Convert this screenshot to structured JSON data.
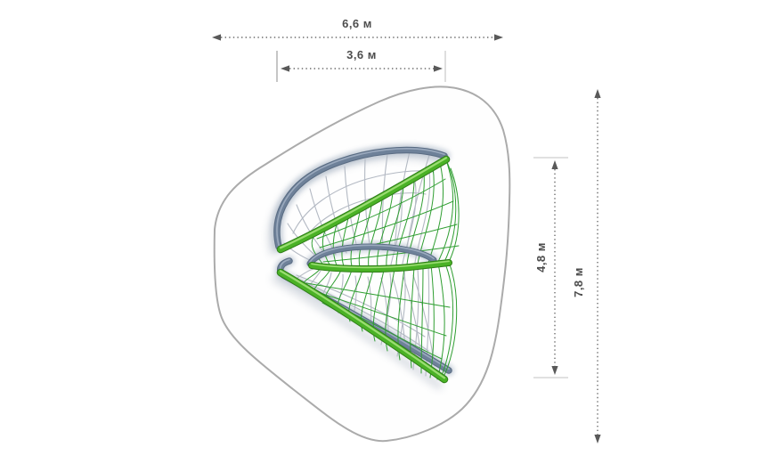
{
  "dimensions": {
    "overall_width": {
      "label": "6,6 м"
    },
    "inner_width": {
      "label": "3,6 м"
    },
    "inner_height": {
      "label": "4,8 м"
    },
    "overall_height": {
      "label": "7,8 м"
    }
  },
  "colors": {
    "background": "#ffffff",
    "safety_zone_outline": "#ababab",
    "frame_steel_dark": "#5a6c83",
    "frame_steel": "#6e8199",
    "frame_steel_light": "#a3b1c4",
    "tube_green_dark": "#2f7d18",
    "tube_green": "#4ab226",
    "tube_green_light": "#a8e37f",
    "net_green": "#2f9e31",
    "net_gray": "#b3b9c3",
    "shadow_slate": "#7589a3",
    "shadow_soft": "#aab4c1",
    "dimension_line": "#6b6b6b",
    "dimension_tick_dark": "#9f9f9f",
    "dimension_tick_light": "#d6d6d6",
    "dimension_arrow": "#595959",
    "dimension_text": "#4d4d4d"
  }
}
